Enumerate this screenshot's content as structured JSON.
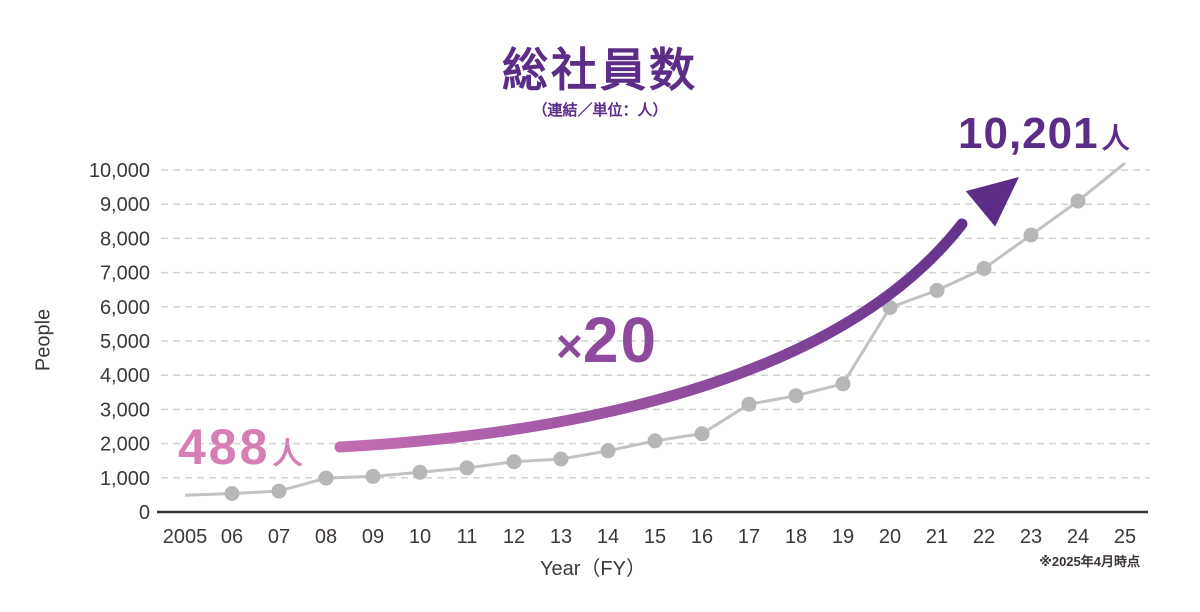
{
  "chart_data": {
    "type": "line",
    "title": "総社員数",
    "subtitle": "（連結／単位：人）",
    "xlabel": "Year（FY）",
    "ylabel": "People",
    "footnote": "※2025年4月時点",
    "categories": [
      "2005",
      "06",
      "07",
      "08",
      "09",
      "10",
      "11",
      "12",
      "13",
      "14",
      "15",
      "16",
      "17",
      "18",
      "19",
      "20",
      "21",
      "22",
      "23",
      "24",
      "25"
    ],
    "values": [
      488,
      540,
      610,
      990,
      1040,
      1160,
      1290,
      1470,
      1550,
      1790,
      2080,
      2290,
      3150,
      3400,
      3750,
      5980,
      6480,
      7120,
      8100,
      9090,
      10201
    ],
    "y_ticks": [
      0,
      1000,
      2000,
      3000,
      4000,
      5000,
      6000,
      7000,
      8000,
      9000,
      10000
    ],
    "y_tick_labels": [
      "0",
      "1,000",
      "2,000",
      "3,000",
      "4,000",
      "5,000",
      "6,000",
      "7,000",
      "8,000",
      "9,000",
      "10,000"
    ],
    "ylim": [
      0,
      10000
    ],
    "grid": "horizontal-dashed",
    "legend": "none",
    "annotations": {
      "start": {
        "value": "488",
        "unit": "人"
      },
      "multiplier": {
        "sign": "×",
        "value": "20"
      },
      "end": {
        "value": "10,201",
        "unit": "人"
      }
    }
  },
  "colors": {
    "title_purple": "#5b2d87",
    "multiplier_purple": "#8d4a9c",
    "start_pink": "#d77fb4",
    "line_gray": "#c2c2c2",
    "marker_gray": "#b7b7b7",
    "grid_gray": "#d2d2d2",
    "axis_dark": "#3a3433",
    "tick_text": "#3d3835",
    "arrow_gradient": [
      "#c36db3",
      "#8d4a9c",
      "#5b2d87"
    ]
  }
}
